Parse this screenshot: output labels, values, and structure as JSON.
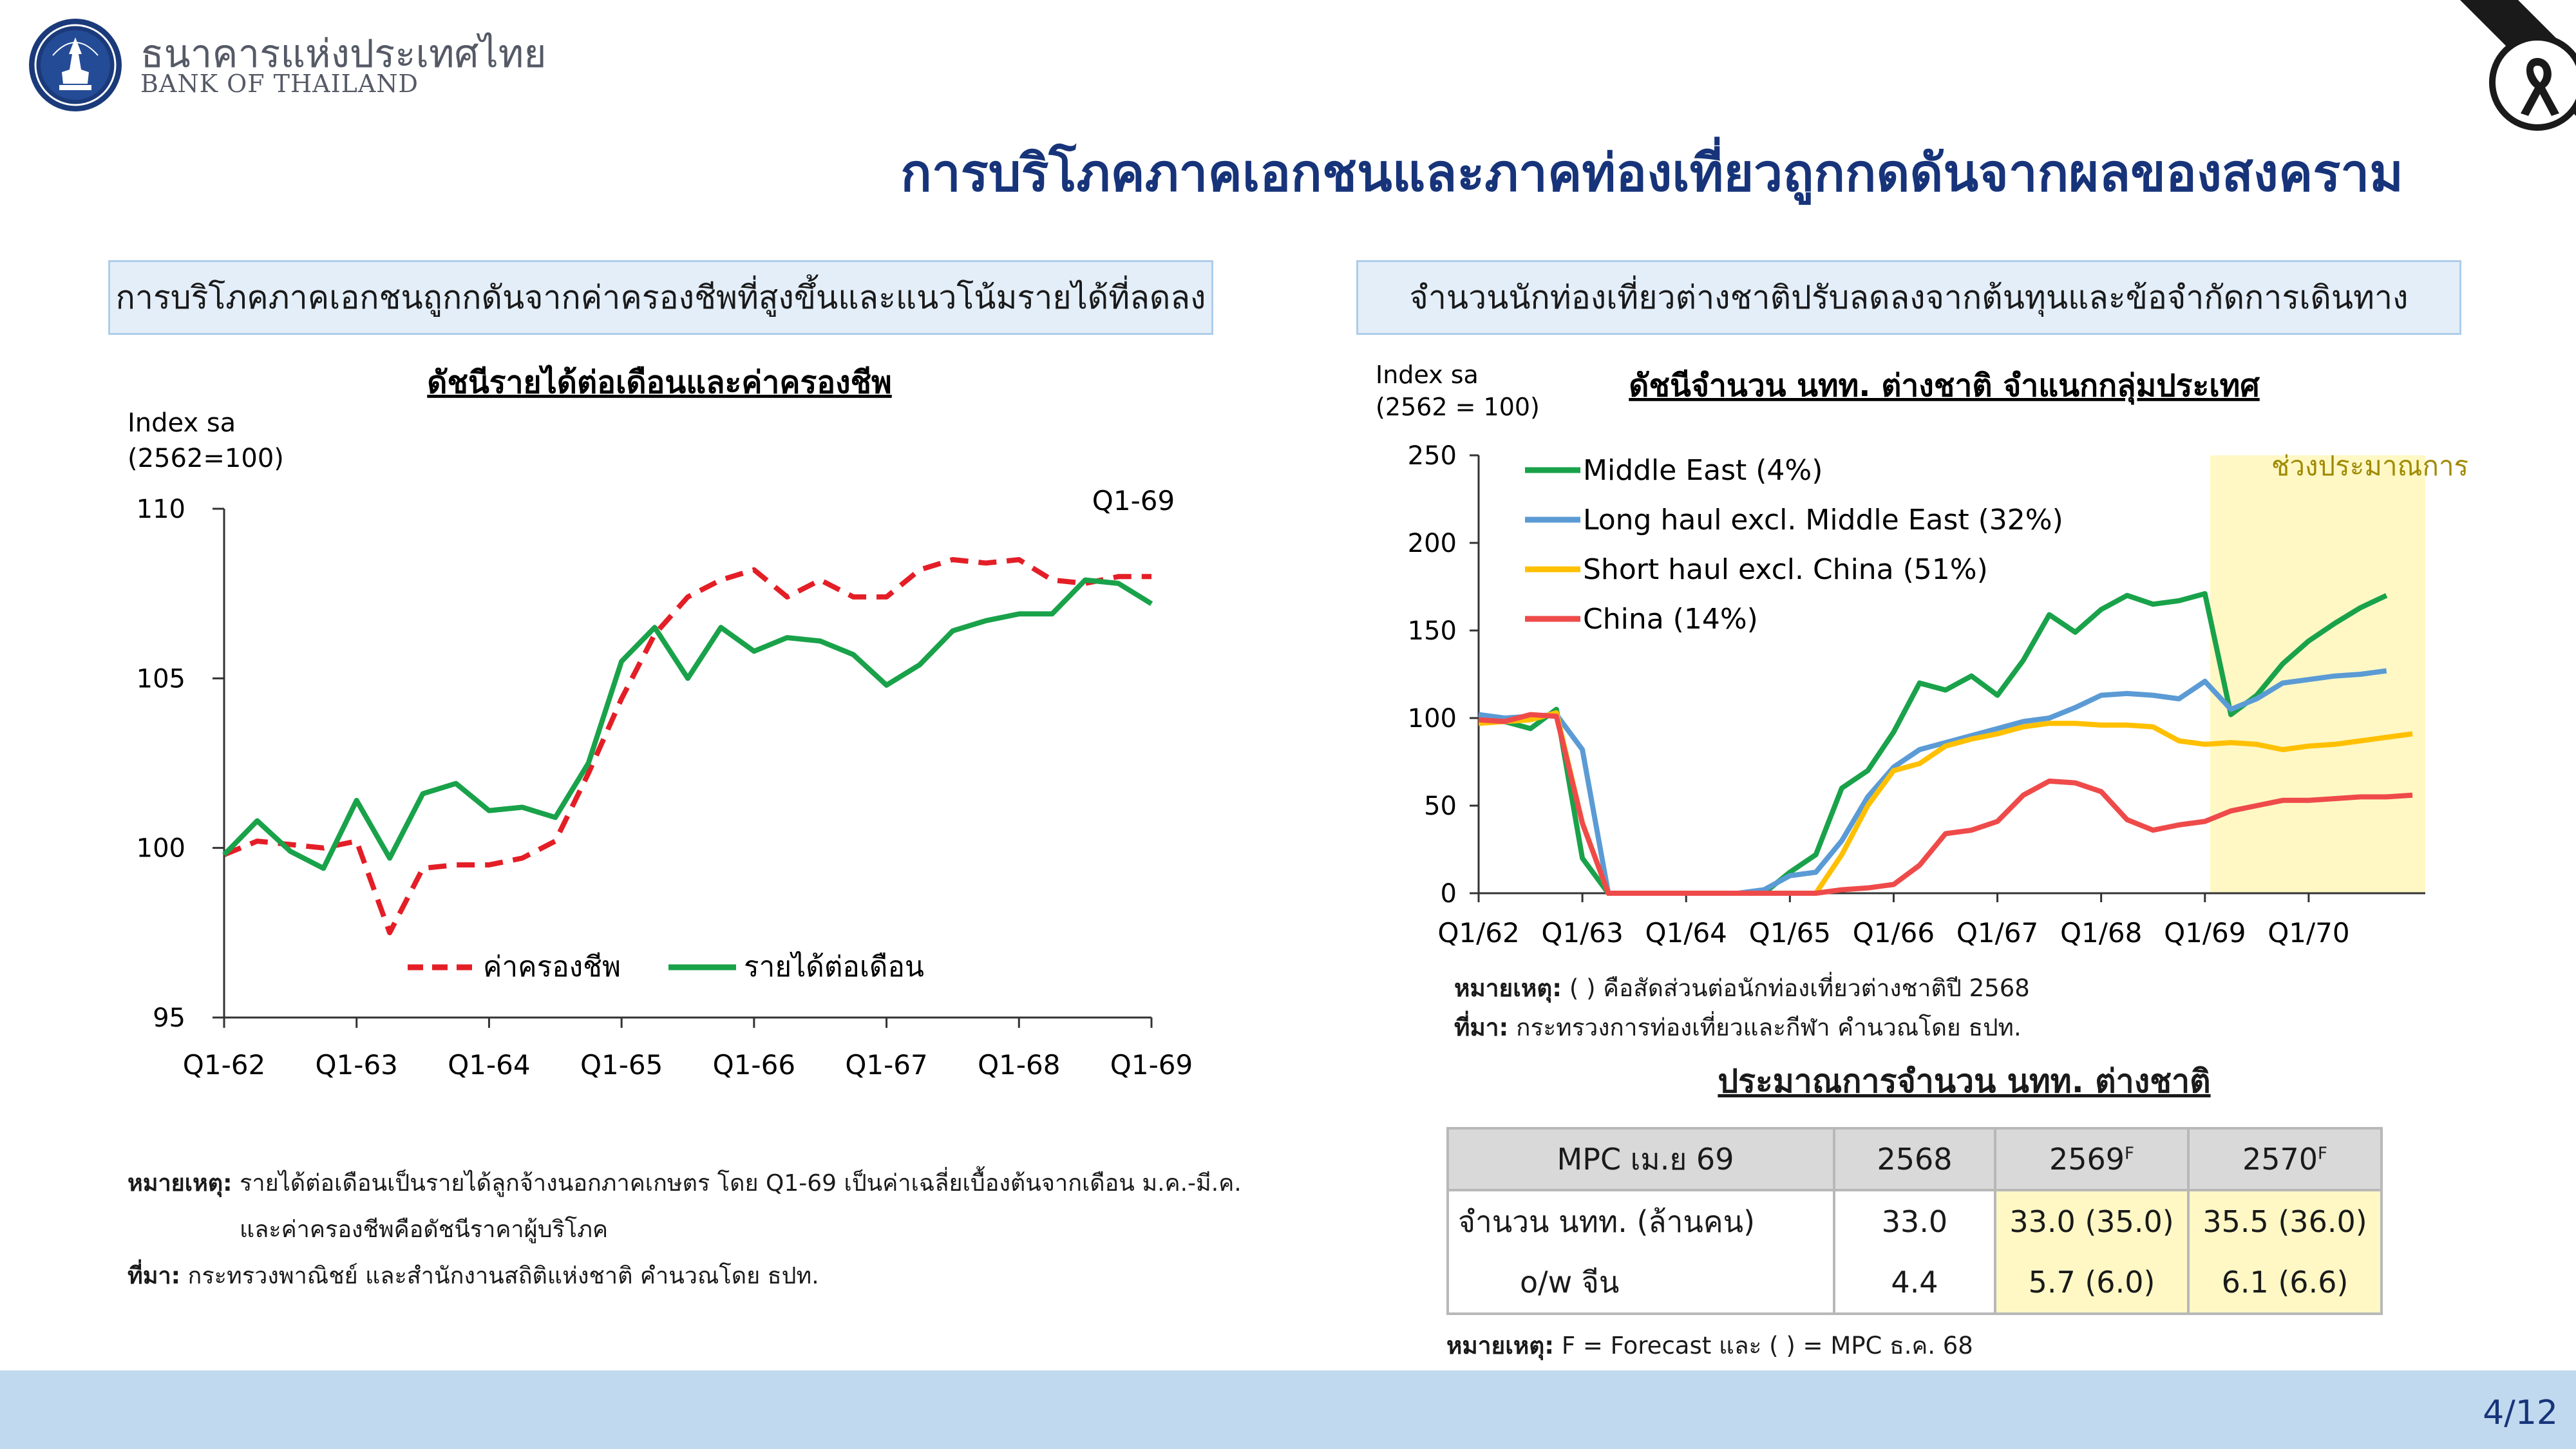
{
  "header": {
    "org_name_th": "ธนาคารแห่งประเทศไทย",
    "org_name_en": "BANK OF THAILAND",
    "slide_title": "การบริโภคภาคเอกชนและภาคท่องเที่ยวถูกกดดันจากผลของสงคราม"
  },
  "left_panel": {
    "heading": "การบริโภคภาคเอกชนถูกกดันจากค่าครองชีพที่สูงขึ้นและแนวโน้มรายได้ที่ลดลง",
    "note_label": "หมายเหตุ:",
    "note_line1": "รายได้ต่อเดือนเป็นรายได้ลูกจ้างนอกภาคเกษตร โดย Q1-69 เป็นค่าเฉลี่ยเบื้องต้นจากเดือน ม.ค.-มี.ค.",
    "note_line2": "และค่าครองชีพคือดัชนีราคาผู้บริโภค",
    "source_label": "ที่มา:",
    "source_text": "กระทรวงพาณิชย์ และสำนักงานสถิติแห่งชาติ คำนวณโดย ธปท."
  },
  "right_panel": {
    "heading": "จำนวนนักท่องเที่ยวต่างชาติปรับลดลงจากต้นทุนและข้อจำกัดการเดินทาง",
    "note_label": "หมายเหตุ:",
    "note_text": "( ) คือสัดส่วนต่อนักท่องเที่ยวต่างชาติปี 2568",
    "source_label": "ที่มา:",
    "source_text": "กระทรวงการท่องเที่ยวและกีฬา คำนวณโดย ธปท."
  },
  "chart_data": [
    {
      "type": "line",
      "title": "ดัชนีรายได้ต่อเดือนและค่าครองชีพ",
      "ylabel_line1": "Index sa",
      "ylabel_line2": "(2562=100)",
      "ylim": [
        95,
        110
      ],
      "yticks": [
        "110",
        "105",
        "100",
        "95"
      ],
      "xtick_labels": [
        "Q1-62",
        "Q1-63",
        "Q1-64",
        "Q1-65",
        "Q1-66",
        "Q1-67",
        "Q1-68",
        "Q1-69"
      ],
      "annotation": "Q1-69",
      "legend_position": "bottom",
      "series": [
        {
          "name": "ค่าครองชีพ",
          "color": "#e41e26",
          "style": "dashed",
          "values": [
            99.8,
            100.2,
            100.1,
            100.0,
            100.2,
            97.5,
            99.4,
            99.5,
            99.5,
            99.7,
            100.2,
            102.2,
            104.4,
            106.3,
            107.4,
            107.9,
            108.2,
            107.4,
            107.9,
            107.4,
            107.4,
            108.2,
            108.5,
            108.4,
            108.5,
            107.9,
            107.8,
            108.0,
            108.0
          ]
        },
        {
          "name": "รายได้ต่อเดือน",
          "color": "#19a24a",
          "style": "solid",
          "values": [
            99.8,
            100.8,
            99.9,
            99.4,
            101.4,
            99.7,
            101.6,
            101.9,
            101.1,
            101.2,
            100.9,
            102.5,
            105.5,
            106.5,
            105.0,
            106.5,
            105.8,
            106.2,
            106.1,
            105.7,
            104.8,
            105.4,
            106.4,
            106.7,
            106.9,
            106.9,
            107.9,
            107.8,
            107.2
          ]
        }
      ]
    },
    {
      "type": "line",
      "title": "ดัชนีจำนวน นทท. ต่างชาติ จำแนกกลุ่มประเทศ",
      "ylabel_line1": "Index sa",
      "ylabel_line2": "(2562 = 100)",
      "ylim": [
        0,
        250
      ],
      "yticks": [
        "250",
        "200",
        "150",
        "100",
        "50",
        "0"
      ],
      "xtick_labels": [
        "Q1/62",
        "Q1/63",
        "Q1/64",
        "Q1/65",
        "Q1/66",
        "Q1/67",
        "Q1/68",
        "Q1/69",
        "Q1/70"
      ],
      "forecast_label": "ช่วงประมาณการ",
      "forecast_color": "#fff8c5",
      "forecast_label_color": "#a08a00",
      "legend_position": "top-left",
      "series": [
        {
          "name": "Middle East (4%)",
          "color": "#19a24a",
          "values": [
            100,
            98,
            94,
            105,
            20,
            0,
            0,
            0,
            0,
            0,
            0,
            0,
            12,
            22,
            60,
            70,
            92,
            120,
            116,
            124,
            113,
            133,
            159,
            149,
            162,
            170,
            165,
            167,
            171,
            102,
            113,
            131,
            144,
            154,
            163,
            170
          ]
        },
        {
          "name": "Long haul excl. Middle East (32%)",
          "color": "#5b9bd5",
          "values": [
            102,
            100,
            101,
            102,
            82,
            0,
            0,
            0,
            0,
            0,
            0,
            2,
            10,
            12,
            30,
            55,
            72,
            82,
            86,
            90,
            94,
            98,
            100,
            106,
            113,
            114,
            113,
            111,
            121,
            105,
            111,
            120,
            122,
            124,
            125,
            127
          ]
        },
        {
          "name": "Short haul excl. China (51%)",
          "color": "#ffc000",
          "values": [
            97,
            98,
            99,
            103,
            40,
            0,
            0,
            0,
            0,
            0,
            0,
            0,
            0,
            0,
            22,
            50,
            70,
            74,
            84,
            88,
            91,
            95,
            97,
            97,
            96,
            96,
            95,
            87,
            85,
            86,
            85,
            82,
            84,
            85,
            87,
            89,
            91
          ]
        },
        {
          "name": "China (14%)",
          "color": "#ef4a4a",
          "values": [
            99,
            98,
            102,
            101,
            40,
            0,
            0,
            0,
            0,
            0,
            0,
            0,
            0,
            0,
            2,
            3,
            5,
            16,
            34,
            36,
            41,
            56,
            64,
            63,
            58,
            42,
            36,
            39,
            41,
            47,
            50,
            53,
            53,
            54,
            55,
            55,
            56
          ]
        }
      ]
    }
  ],
  "forecast_table": {
    "title": "ประมาณการจำนวน นทท. ต่างชาติ",
    "head_col1": "MPC เม.ย 69",
    "head_col2": "2568",
    "head_col3": "2569",
    "head_col3_sup": "F",
    "head_col4": "2570",
    "head_col4_sup": "F",
    "row1_label": "จำนวน นทท. (ล้านคน)",
    "row1_v1": "33.0",
    "row1_v2": "33.0 (35.0)",
    "row1_v3": "35.5 (36.0)",
    "row2_label": "o/w จีน",
    "row2_v1": "4.4",
    "row2_v2": "5.7 (6.0)",
    "row2_v3": "6.1 (6.6)",
    "note_label": "หมายเหตุ:",
    "note_text": "F = Forecast และ ( ) = MPC ธ.ค. 68",
    "highlight_color": "#fff8c5"
  },
  "footer": {
    "page": "4/12",
    "color": "#c0d9ef"
  }
}
